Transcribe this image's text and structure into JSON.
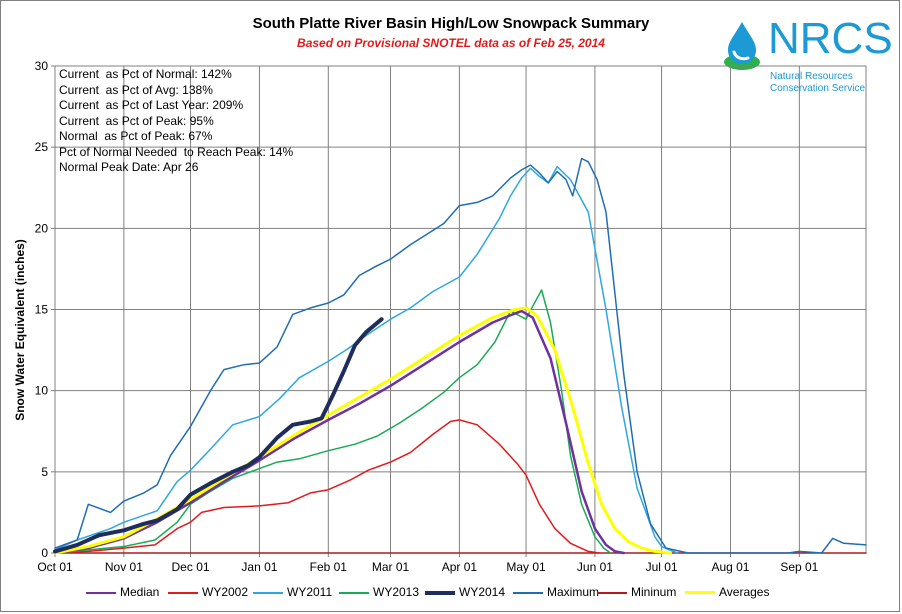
{
  "title": "South Platte River Basin High/Low Snowpack Summary",
  "subtitle": "Based on Provisional SNOTEL data as of Feb 25, 2014",
  "logo": {
    "word": "NRCS",
    "line1": "Natural Resources",
    "line2": "Conservation Service",
    "icon": "water-drop-icon"
  },
  "stats": [
    "Current  as Pct of Normal: 142%",
    "Current  as Pct of Avg: 138%",
    "Current  as Pct of Last Year: 209%",
    "Current  as Pct of Peak: 95%",
    "Normal  as Pct of Peak: 67%",
    "Pct of Normal Needed  to Reach Peak: 14%",
    "Normal Peak Date: Apr 26"
  ],
  "chart_data": {
    "type": "line",
    "xlabel": "",
    "ylabel": "Snow Water Equivalent (inches)",
    "ylim": [
      0,
      30
    ],
    "yticks": [
      0,
      5,
      10,
      15,
      20,
      25,
      30
    ],
    "x_domain_days": [
      0,
      365
    ],
    "xticks": [
      {
        "label": "Oct 01",
        "day": 0
      },
      {
        "label": "Nov 01",
        "day": 31
      },
      {
        "label": "Dec 01",
        "day": 61
      },
      {
        "label": "Jan 01",
        "day": 92
      },
      {
        "label": "Feb 01",
        "day": 123
      },
      {
        "label": "Mar 01",
        "day": 151
      },
      {
        "label": "Apr 01",
        "day": 182
      },
      {
        "label": "May 01",
        "day": 212
      },
      {
        "label": "Jun 01",
        "day": 243
      },
      {
        "label": "Jul 01",
        "day": 273
      },
      {
        "label": "Aug 01",
        "day": 304
      },
      {
        "label": "Sep 01",
        "day": 335
      }
    ],
    "grid": true,
    "legend_position": "bottom",
    "series": [
      {
        "name": "Median",
        "color": "#7030a0",
        "width": 2.5,
        "x": [
          0,
          15,
          31,
          46,
          61,
          76,
          92,
          107,
          123,
          137,
          151,
          166,
          182,
          197,
          206,
          210,
          215,
          223,
          230,
          237,
          243,
          248,
          252,
          256
        ],
        "y": [
          0,
          0.3,
          0.9,
          1.9,
          3.1,
          4.4,
          5.7,
          7.0,
          8.2,
          9.2,
          10.3,
          11.6,
          13.0,
          14.2,
          14.7,
          14.9,
          14.5,
          12.0,
          8.0,
          3.8,
          1.5,
          0.5,
          0.1,
          0
        ]
      },
      {
        "name": "WY2002",
        "color": "#e31a1c",
        "width": 1.5,
        "x": [
          0,
          15,
          31,
          45,
          55,
          61,
          66,
          76,
          92,
          105,
          115,
          123,
          133,
          141,
          151,
          160,
          170,
          178,
          182,
          190,
          200,
          208,
          212,
          218,
          225,
          232,
          240,
          245
        ],
        "y": [
          0,
          0.1,
          0.3,
          0.5,
          1.5,
          1.9,
          2.5,
          2.8,
          2.9,
          3.1,
          3.7,
          3.9,
          4.5,
          5.1,
          5.6,
          6.2,
          7.3,
          8.1,
          8.2,
          7.9,
          6.7,
          5.5,
          4.8,
          3.0,
          1.5,
          0.6,
          0.1,
          0
        ]
      },
      {
        "name": "WY2011",
        "color": "#2ea7e0",
        "width": 1.5,
        "x": [
          0,
          10,
          25,
          31,
          46,
          55,
          61,
          70,
          80,
          92,
          101,
          110,
          123,
          132,
          140,
          151,
          160,
          170,
          182,
          190,
          200,
          205,
          210,
          214,
          218,
          222,
          226,
          232,
          240,
          248,
          255,
          262,
          270,
          273,
          280
        ],
        "y": [
          0.2,
          0.8,
          1.5,
          1.9,
          2.6,
          4.4,
          5.1,
          6.4,
          7.9,
          8.4,
          9.5,
          10.8,
          11.8,
          12.6,
          13.4,
          14.4,
          15.1,
          16.1,
          17.0,
          18.4,
          20.6,
          22.0,
          23.1,
          23.7,
          23.2,
          22.8,
          23.8,
          23.0,
          21.0,
          15.0,
          9.0,
          4.0,
          1.0,
          0.4,
          0
        ]
      },
      {
        "name": "WY2013",
        "color": "#1aaa55",
        "width": 1.5,
        "x": [
          0,
          31,
          45,
          55,
          61,
          70,
          80,
          92,
          100,
          110,
          123,
          135,
          145,
          155,
          165,
          175,
          182,
          190,
          198,
          205,
          212,
          215,
          219,
          223,
          228,
          232,
          237,
          243,
          247,
          250
        ],
        "y": [
          0,
          0.4,
          0.8,
          1.9,
          3.0,
          3.8,
          4.6,
          5.2,
          5.6,
          5.8,
          6.3,
          6.7,
          7.2,
          8.0,
          8.9,
          9.9,
          10.8,
          11.6,
          13.0,
          14.9,
          14.4,
          15.2,
          16.2,
          14.2,
          10.0,
          6.0,
          3.0,
          1.0,
          0.3,
          0
        ]
      },
      {
        "name": "WY2014",
        "color": "#1f2d5c",
        "width": 4,
        "x": [
          0,
          10,
          20,
          31,
          40,
          46,
          55,
          61,
          70,
          80,
          87,
          92,
          100,
          107,
          115,
          120,
          125,
          130,
          135,
          140,
          147
        ],
        "y": [
          0.1,
          0.5,
          1.1,
          1.4,
          1.8,
          2.0,
          2.7,
          3.6,
          4.3,
          5.0,
          5.4,
          5.9,
          7.1,
          7.9,
          8.1,
          8.3,
          9.7,
          11.2,
          12.8,
          13.6,
          14.4
        ]
      },
      {
        "name": "Maximum",
        "color": "#1f6db5",
        "width": 1.5,
        "x": [
          0,
          10,
          15,
          25,
          31,
          40,
          46,
          52,
          61,
          70,
          76,
          85,
          92,
          100,
          107,
          115,
          123,
          130,
          137,
          145,
          151,
          160,
          167,
          175,
          182,
          190,
          197,
          205,
          210,
          214,
          218,
          222,
          226,
          230,
          233,
          237,
          240,
          244,
          248,
          252,
          256,
          262,
          268,
          275,
          285,
          300,
          330,
          335,
          345,
          350,
          355,
          365
        ],
        "y": [
          0.3,
          0.8,
          3.0,
          2.5,
          3.2,
          3.7,
          4.2,
          6.0,
          7.8,
          10.0,
          11.3,
          11.6,
          11.7,
          12.7,
          14.7,
          15.1,
          15.4,
          15.9,
          17.1,
          17.7,
          18.1,
          19.0,
          19.6,
          20.3,
          21.4,
          21.6,
          22.0,
          23.1,
          23.6,
          23.9,
          23.4,
          22.8,
          23.5,
          23.0,
          22.0,
          24.3,
          24.1,
          23.0,
          21.0,
          16.0,
          11.0,
          5.0,
          1.8,
          0.3,
          0,
          0,
          0,
          0.1,
          0,
          0.9,
          0.6,
          0.5
        ]
      },
      {
        "name": "Mininum",
        "color": "#b01c1c",
        "width": 1.5,
        "x": [
          0,
          31,
          61,
          92,
          123,
          151,
          182,
          190,
          200,
          206,
          212,
          218,
          226,
          234,
          240,
          245,
          365
        ],
        "y": [
          0,
          0,
          0,
          0,
          0,
          0,
          0,
          0,
          0,
          0,
          0,
          0,
          0,
          0,
          0,
          0,
          0
        ]
      },
      {
        "name": "Averages",
        "color": "#ffff00",
        "width": 3,
        "x": [
          0,
          15,
          31,
          46,
          61,
          76,
          92,
          107,
          123,
          137,
          151,
          166,
          182,
          197,
          207,
          212,
          217,
          225,
          233,
          240,
          246,
          252,
          258,
          264,
          270,
          277
        ],
        "y": [
          0,
          0.4,
          1.0,
          2.1,
          3.3,
          4.6,
          5.9,
          7.2,
          8.5,
          9.6,
          10.7,
          12.0,
          13.4,
          14.5,
          15.0,
          15.1,
          14.6,
          12.5,
          9.0,
          5.5,
          3.0,
          1.5,
          0.7,
          0.3,
          0.1,
          0
        ]
      }
    ]
  }
}
